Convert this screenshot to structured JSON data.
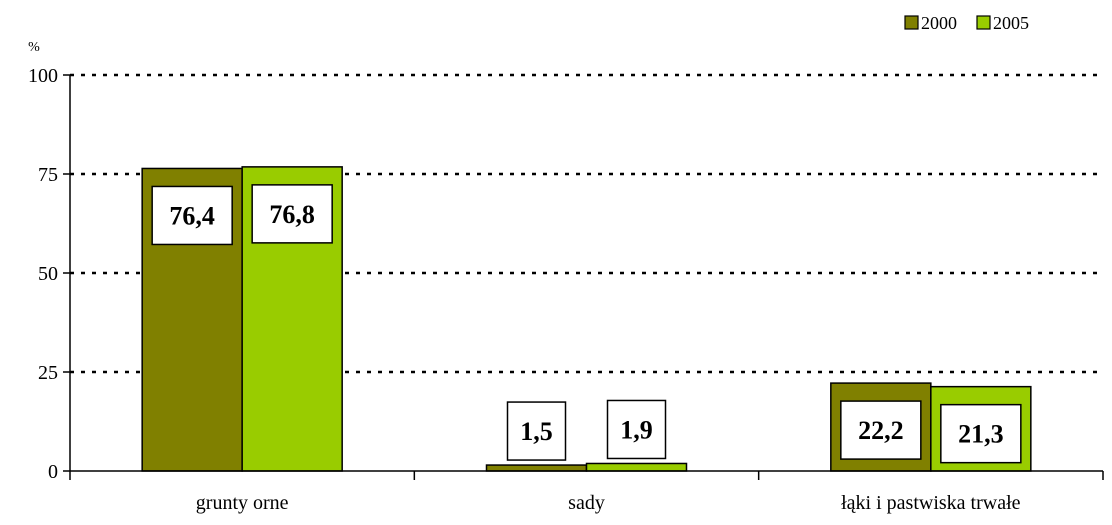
{
  "chart_data": {
    "type": "bar",
    "unit_label": "%",
    "categories": [
      "grunty orne",
      "sady",
      "łąki i pastwiska trwałe"
    ],
    "series": [
      {
        "name": "2000",
        "values": [
          76.4,
          1.5,
          22.2
        ],
        "labels": [
          "76,4",
          "1,5",
          "22,2"
        ],
        "color": "#808000"
      },
      {
        "name": "2005",
        "values": [
          76.8,
          1.9,
          21.3
        ],
        "labels": [
          "76,8",
          "1,9",
          "21,3"
        ],
        "color": "#99cc00"
      }
    ],
    "yticks": [
      "0",
      "25",
      "50",
      "75",
      "100"
    ],
    "ylim": [
      0,
      100
    ],
    "grid": "dotted horizontal",
    "legend_position": "top-right"
  }
}
